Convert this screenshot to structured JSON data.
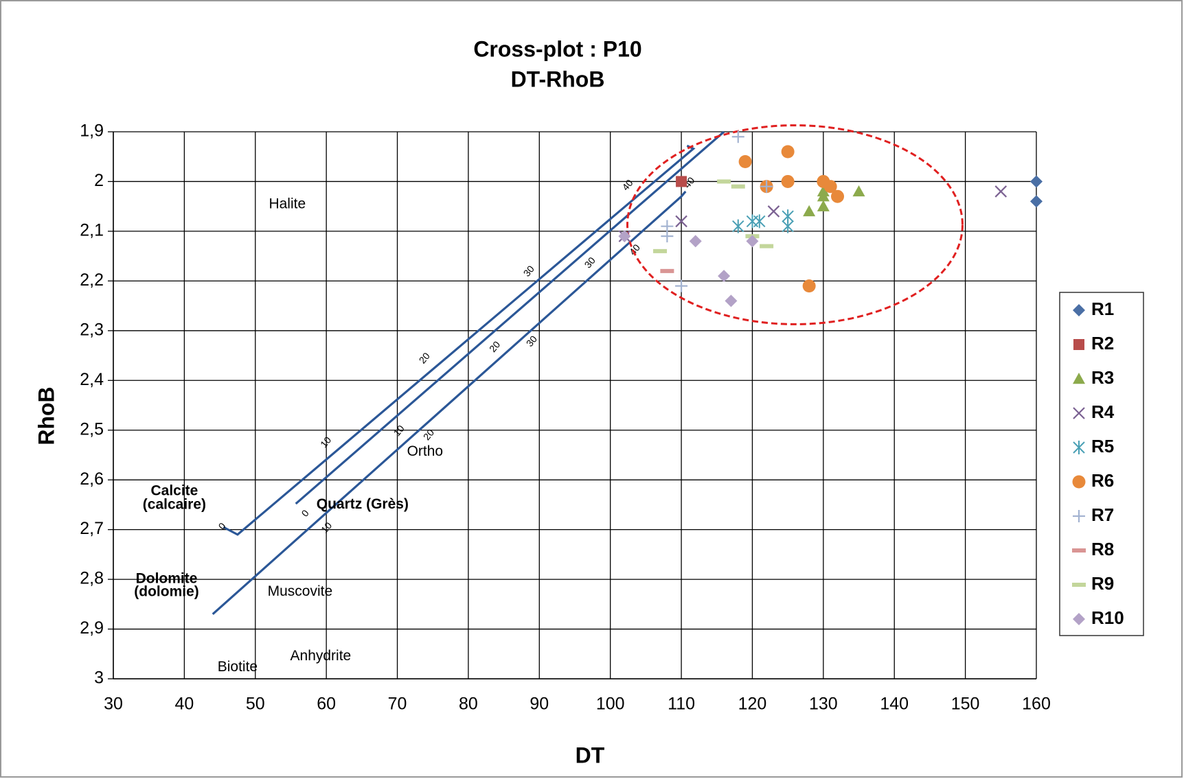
{
  "chart_data": {
    "type": "scatter",
    "title": "Cross-plot : P10",
    "subtitle": "DT-RhoB",
    "x_label": "DT",
    "y_label": "RhoB",
    "xlim": [
      30,
      160
    ],
    "xticks": [
      30,
      40,
      50,
      60,
      70,
      80,
      90,
      100,
      110,
      120,
      130,
      140,
      150,
      160
    ],
    "ylim": [
      3,
      1.9
    ],
    "yticks": [
      {
        "value": 1.9,
        "label": "1,9"
      },
      2,
      {
        "value": 2.1,
        "label": "2,1"
      },
      {
        "value": 2.2,
        "label": "2,2"
      },
      {
        "value": 2.3,
        "label": "2,3"
      },
      {
        "value": 2.4,
        "label": "2,4"
      },
      {
        "value": 2.5,
        "label": "2,5"
      },
      {
        "value": 2.6,
        "label": "2,6"
      },
      {
        "value": 2.7,
        "label": "2,7"
      },
      {
        "value": 2.8,
        "label": "2,8"
      },
      {
        "value": 2.9,
        "label": "2,9"
      },
      3
    ],
    "grid": true,
    "legend": "right",
    "series": [
      {
        "name": "R1",
        "color": "#4a6fa5",
        "marker": "diamond",
        "x": [
          160,
          160
        ],
        "values": [
          2.0,
          2.04
        ]
      },
      {
        "name": "R2",
        "color": "#b84c4a",
        "marker": "square",
        "x": [
          110
        ],
        "values": [
          2.0
        ]
      },
      {
        "name": "R3",
        "color": "#8caa4c",
        "marker": "triangle",
        "x": [
          128,
          130,
          130,
          130,
          135
        ],
        "values": [
          2.06,
          2.05,
          2.03,
          2.02,
          2.02
        ]
      },
      {
        "name": "R4",
        "color": "#7b6192",
        "marker": "x",
        "x": [
          155,
          123,
          110,
          102
        ],
        "values": [
          2.02,
          2.06,
          2.08,
          2.11
        ]
      },
      {
        "name": "R5",
        "color": "#4aa0b5",
        "marker": "asterisk",
        "x": [
          118,
          121,
          125,
          125,
          120
        ],
        "values": [
          2.09,
          2.08,
          2.07,
          2.09,
          2.08
        ]
      },
      {
        "name": "R6",
        "color": "#e8893a",
        "marker": "circle",
        "x": [
          125,
          119,
          122,
          125,
          130,
          131,
          132,
          128
        ],
        "values": [
          1.94,
          1.96,
          2.01,
          2.0,
          2.0,
          2.01,
          2.03,
          2.21
        ]
      },
      {
        "name": "R7",
        "color": "#a3b3d1",
        "marker": "plus",
        "x": [
          118,
          108,
          108,
          110,
          122
        ],
        "values": [
          1.91,
          2.09,
          2.11,
          2.21,
          2.01
        ]
      },
      {
        "name": "R8",
        "color": "#d99594",
        "marker": "dash",
        "x": [
          108
        ],
        "values": [
          2.18
        ]
      },
      {
        "name": "R9",
        "color": "#c3d69b",
        "marker": "dash",
        "x": [
          116,
          118,
          107,
          120,
          122
        ],
        "values": [
          2.0,
          2.01,
          2.14,
          2.11,
          2.13
        ]
      },
      {
        "name": "R10",
        "color": "#b3a2c7",
        "marker": "diamond",
        "x": [
          102,
          112,
          116,
          120,
          117
        ],
        "values": [
          2.11,
          2.12,
          2.19,
          2.12,
          2.24
        ]
      }
    ],
    "reference_lines": {
      "color": "#2b5797",
      "lines": [
        {
          "x": [
            45.5,
            47.5,
            111.7,
            110.8
          ],
          "y": [
            2.695,
            2.71,
            1.934,
            1.928
          ]
        },
        {
          "x": [
            55.7,
            116
          ],
          "y": [
            2.648,
            1.9
          ]
        },
        {
          "x": [
            44,
            110,
            110.6
          ],
          "y": [
            2.87,
            2.03,
            2.02
          ]
        }
      ]
    },
    "porosity_labels": [
      {
        "text": "0",
        "x": 45.4,
        "y": 2.694
      },
      {
        "text": "10",
        "x": 60.0,
        "y": 2.525
      },
      {
        "text": "20",
        "x": 73.9,
        "y": 2.356
      },
      {
        "text": "30",
        "x": 88.6,
        "y": 2.181
      },
      {
        "text": "40",
        "x": 102.5,
        "y": 2.008
      },
      {
        "text": "0",
        "x": 57.1,
        "y": 2.668
      },
      {
        "text": "10",
        "x": 70.3,
        "y": 2.502
      },
      {
        "text": "20",
        "x": 83.8,
        "y": 2.333
      },
      {
        "text": "30",
        "x": 97.2,
        "y": 2.164
      },
      {
        "text": "40",
        "x": 111.2,
        "y": 2.003
      },
      {
        "text": "10",
        "x": 60.1,
        "y": 2.697
      },
      {
        "text": "20",
        "x": 74.5,
        "y": 2.51
      },
      {
        "text": "30",
        "x": 89.0,
        "y": 2.322
      },
      {
        "text": "40",
        "x": 103.5,
        "y": 2.138
      }
    ],
    "mineral_labels": [
      {
        "text": "Halite",
        "x": 54.5,
        "y": 2.046,
        "bold": false
      },
      {
        "text": "Ortho",
        "x": 73.9,
        "y": 2.544,
        "bold": false
      },
      {
        "text": "Calcite",
        "x": 38.6,
        "y": 2.623,
        "bold": true
      },
      {
        "text": "(calcaire)",
        "x": 38.6,
        "y": 2.651,
        "bold": true
      },
      {
        "text": "Quartz (Grès)",
        "x": 65.1,
        "y": 2.65,
        "bold": true
      },
      {
        "text": "Dolomite",
        "x": 37.5,
        "y": 2.8,
        "bold": true
      },
      {
        "text": "(dolomie)",
        "x": 37.5,
        "y": 2.826,
        "bold": true
      },
      {
        "text": "Muscovite",
        "x": 56.3,
        "y": 2.825,
        "bold": false
      },
      {
        "text": "Anhydrite",
        "x": 59.2,
        "y": 2.955,
        "bold": false
      },
      {
        "text": "Biotite",
        "x": 47.5,
        "y": 2.977,
        "bold": false
      }
    ],
    "highlight_ellipse": {
      "color": "#e02020",
      "cx": 126,
      "cy": 2.087,
      "rx": 23.6,
      "ry": 0.2
    }
  }
}
